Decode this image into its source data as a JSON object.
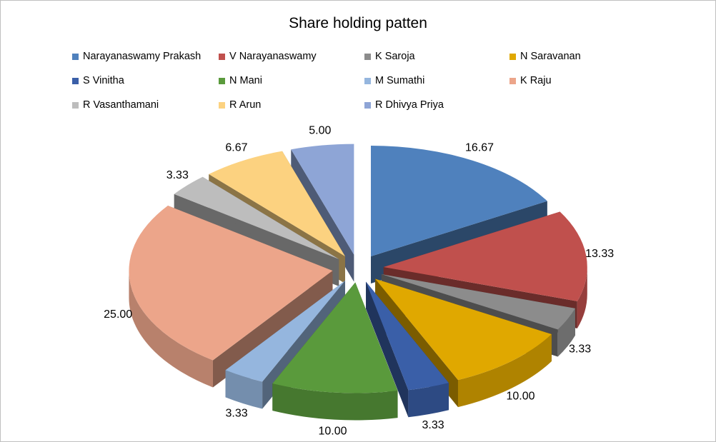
{
  "chart_data": {
    "type": "pie",
    "title": "Share holding patten",
    "legend_position": "top",
    "style": "exploded-3d",
    "slices": [
      {
        "label": "Narayanaswamy Prakash",
        "value": 16.67,
        "value_label": "16.67",
        "color": "#4f81bd"
      },
      {
        "label": "V Narayanaswamy",
        "value": 13.33,
        "value_label": "13.33",
        "color": "#c0504d"
      },
      {
        "label": "K Saroja",
        "value": 3.33,
        "value_label": "3.33",
        "color": "#8c8c8c"
      },
      {
        "label": "N Saravanan",
        "value": 10.0,
        "value_label": "10.00",
        "color": "#e0a800"
      },
      {
        "label": "S Vinitha",
        "value": 3.33,
        "value_label": "3.33",
        "color": "#3a5fa8"
      },
      {
        "label": "N Mani",
        "value": 10.0,
        "value_label": "10.00",
        "color": "#5a9a3c"
      },
      {
        "label": "M Sumathi",
        "value": 3.33,
        "value_label": "3.33",
        "color": "#95b6de"
      },
      {
        "label": "K Raju",
        "value": 25.0,
        "value_label": "25.00",
        "color": "#eca58a"
      },
      {
        "label": "R Vasanthamani",
        "value": 3.33,
        "value_label": "3.33",
        "color": "#bdbdbd"
      },
      {
        "label": "R Arun",
        "value": 6.67,
        "value_label": "6.67",
        "color": "#fcd280"
      },
      {
        "label": "R Dhivya  Priya",
        "value": 5.0,
        "value_label": "5.00",
        "color": "#8ea5d6"
      }
    ]
  }
}
